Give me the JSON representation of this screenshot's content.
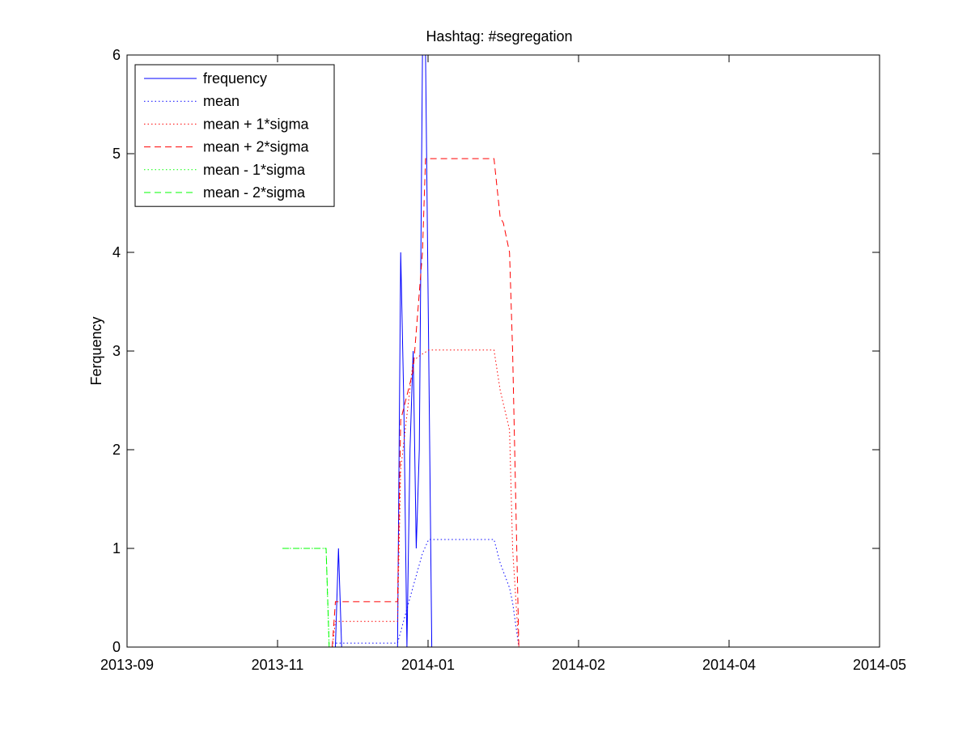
{
  "chart_data": {
    "type": "line",
    "title": "Hashtag: #segregation",
    "xlabel": "",
    "ylabel": "Ferquency",
    "x_axis": {
      "ticks": [
        "2013-09",
        "2013-11",
        "2014-01",
        "2014-02",
        "2014-04",
        "2014-05"
      ],
      "range": [
        "2013-09-01",
        "2014-05-01"
      ]
    },
    "y_axis": {
      "ticks": [
        "0",
        "1",
        "2",
        "3",
        "4",
        "5",
        "6"
      ],
      "range": [
        0,
        6
      ]
    },
    "grid": false,
    "legend_position": "top-left",
    "series": [
      {
        "name": "frequency",
        "color": "#0000ff",
        "style": "solid",
        "points": [
          [
            "2013-11-07",
            0
          ],
          [
            "2013-11-08",
            1
          ],
          [
            "2013-11-09",
            0
          ],
          [
            "2013-11-27",
            0
          ],
          [
            "2013-11-28",
            4
          ],
          [
            "2013-11-29",
            2.5
          ],
          [
            "2013-11-30",
            0
          ],
          [
            "2013-12-01",
            2
          ],
          [
            "2013-12-02",
            3
          ],
          [
            "2013-12-03",
            1
          ],
          [
            "2013-12-04",
            2
          ],
          [
            "2013-12-05",
            6
          ],
          [
            "2013-12-06",
            6
          ],
          [
            "2013-12-07",
            3
          ],
          [
            "2013-12-08",
            0
          ]
        ]
      },
      {
        "name": "mean",
        "color": "#0000ff",
        "style": "dotted",
        "points": [
          [
            "2013-11-06",
            0.04
          ],
          [
            "2013-11-27",
            0.04
          ],
          [
            "2013-12-01",
            0.5
          ],
          [
            "2013-12-05",
            0.95
          ],
          [
            "2013-12-07",
            1.09
          ],
          [
            "2013-12-28",
            1.09
          ],
          [
            "2013-12-30",
            0.85
          ],
          [
            "2014-01-02",
            0.6
          ],
          [
            "2014-01-03",
            0.45
          ],
          [
            "2014-01-05",
            0
          ]
        ]
      },
      {
        "name": "mean + 1*sigma",
        "color": "#ff0000",
        "style": "dotted",
        "points": [
          [
            "2013-11-06",
            0.0
          ],
          [
            "2013-11-07",
            0.26
          ],
          [
            "2013-11-27",
            0.26
          ],
          [
            "2013-11-28",
            1.8
          ],
          [
            "2013-12-02",
            2.9
          ],
          [
            "2013-12-04",
            2.95
          ],
          [
            "2013-12-07",
            3.01
          ],
          [
            "2013-12-28",
            3.01
          ],
          [
            "2013-12-30",
            2.6
          ],
          [
            "2014-01-02",
            2.2
          ],
          [
            "2014-01-03",
            1.0
          ],
          [
            "2014-01-05",
            0
          ]
        ]
      },
      {
        "name": "mean + 2*sigma",
        "color": "#ff0000",
        "style": "dashed",
        "points": [
          [
            "2013-11-06",
            0.0
          ],
          [
            "2013-11-07",
            0.46
          ],
          [
            "2013-11-27",
            0.46
          ],
          [
            "2013-11-28",
            2.3
          ],
          [
            "2013-12-02",
            2.8
          ],
          [
            "2013-12-05",
            4.0
          ],
          [
            "2013-12-06",
            4.95
          ],
          [
            "2013-12-28",
            4.95
          ],
          [
            "2013-12-30",
            4.35
          ],
          [
            "2013-12-31",
            4.3
          ],
          [
            "2014-01-02",
            4.0
          ],
          [
            "2014-01-03",
            3.0
          ],
          [
            "2014-01-05",
            0
          ]
        ]
      },
      {
        "name": "mean - 1*sigma",
        "color": "#00ff00",
        "style": "dotted",
        "points": [
          [
            "2013-10-21",
            1
          ],
          [
            "2013-11-04",
            1
          ],
          [
            "2013-11-05",
            0
          ]
        ]
      },
      {
        "name": "mean - 2*sigma",
        "color": "#00ff00",
        "style": "dashed",
        "points": [
          [
            "2013-10-21",
            1
          ],
          [
            "2013-11-04",
            1
          ],
          [
            "2013-11-05",
            0
          ]
        ]
      }
    ]
  }
}
